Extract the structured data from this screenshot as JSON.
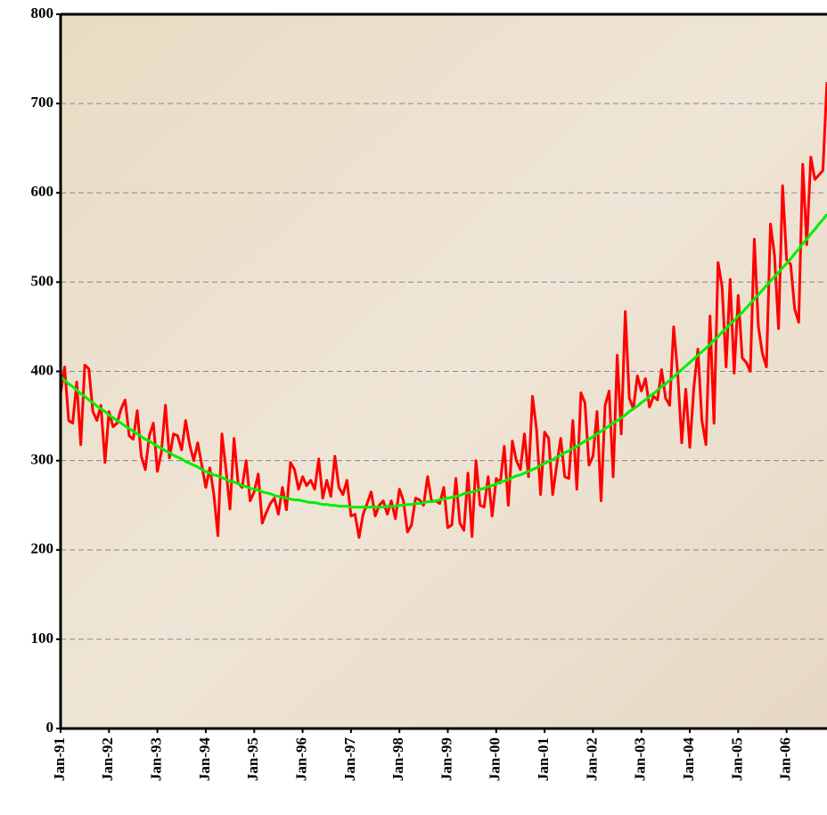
{
  "chart_data": {
    "type": "line",
    "x": [
      "Jan-91",
      null,
      null,
      null,
      null,
      null,
      null,
      null,
      null,
      null,
      null,
      null,
      "Jan-92",
      null,
      null,
      null,
      null,
      null,
      null,
      null,
      null,
      null,
      null,
      null,
      "Jan-93",
      null,
      null,
      null,
      null,
      null,
      null,
      null,
      null,
      null,
      null,
      null,
      "Jan-94",
      null,
      null,
      null,
      null,
      null,
      null,
      null,
      null,
      null,
      null,
      null,
      "Jan-95",
      null,
      null,
      null,
      null,
      null,
      null,
      null,
      null,
      null,
      null,
      null,
      "Jan-96",
      null,
      null,
      null,
      null,
      null,
      null,
      null,
      null,
      null,
      null,
      null,
      "Jan-97",
      null,
      null,
      null,
      null,
      null,
      null,
      null,
      null,
      null,
      null,
      null,
      "Jan-98",
      null,
      null,
      null,
      null,
      null,
      null,
      null,
      null,
      null,
      null,
      null,
      "Jan-99",
      null,
      null,
      null,
      null,
      null,
      null,
      null,
      null,
      null,
      null,
      null,
      "Jan-00",
      null,
      null,
      null,
      null,
      null,
      null,
      null,
      null,
      null,
      null,
      null,
      "Jan-01",
      null,
      null,
      null,
      null,
      null,
      null,
      null,
      null,
      null,
      null,
      null,
      "Jan-02",
      null,
      null,
      null,
      null,
      null,
      null,
      null,
      null,
      null,
      null,
      null,
      "Jan-03",
      null,
      null,
      null,
      null,
      null,
      null,
      null,
      null,
      null,
      null,
      null,
      "Jan-04",
      null,
      null,
      null,
      null,
      null,
      null,
      null,
      null,
      null,
      null,
      null,
      "Jan-05",
      null,
      null,
      null,
      null,
      null,
      null,
      null,
      null,
      null,
      null,
      null,
      "Jan-06",
      null,
      null,
      null,
      null,
      null,
      null,
      null,
      null,
      null,
      null
    ],
    "series": [
      {
        "color": "#ff0000",
        "values": [
          375,
          405,
          345,
          342,
          388,
          318,
          407,
          403,
          355,
          345,
          362,
          298,
          355,
          338,
          342,
          358,
          368,
          328,
          324,
          356,
          305,
          290,
          328,
          342,
          288,
          310,
          362,
          303,
          330,
          328,
          312,
          345,
          318,
          300,
          320,
          295,
          270,
          292,
          262,
          216,
          330,
          290,
          246,
          325,
          275,
          270,
          300,
          255,
          265,
          285,
          230,
          242,
          252,
          258,
          240,
          270,
          245,
          298,
          290,
          268,
          282,
          272,
          278,
          268,
          302,
          258,
          278,
          260,
          305,
          270,
          262,
          278,
          238,
          240,
          214,
          240,
          252,
          265,
          238,
          250,
          255,
          240,
          255,
          235,
          268,
          255,
          220,
          228,
          258,
          256,
          250,
          282,
          254,
          255,
          252,
          270,
          225,
          228,
          280,
          230,
          222,
          286,
          215,
          300,
          250,
          248,
          282,
          238,
          280,
          275,
          316,
          250,
          322,
          300,
          290,
          330,
          282,
          372,
          335,
          262,
          332,
          325,
          262,
          295,
          325,
          282,
          280,
          345,
          268,
          376,
          365,
          295,
          305,
          355,
          255,
          362,
          378,
          282,
          418,
          330,
          467,
          370,
          358,
          395,
          378,
          392,
          360,
          372,
          368,
          402,
          370,
          362,
          450,
          398,
          320,
          380,
          315,
          382,
          425,
          345,
          318,
          462,
          342,
          522,
          495,
          405,
          503,
          398,
          485,
          415,
          410,
          400,
          548,
          450,
          420,
          405,
          565,
          530,
          448,
          608,
          525,
          520,
          470,
          455,
          632,
          542,
          640,
          615,
          620,
          625,
          724
        ]
      },
      {
        "color": "#00ee00",
        "values": [
          394,
          390,
          386,
          383,
          379,
          375,
          372,
          368,
          365,
          361,
          358,
          355,
          351,
          348,
          345,
          342,
          339,
          336,
          333,
          330,
          327,
          324,
          322,
          319,
          316,
          314,
          311,
          309,
          306,
          304,
          302,
          299,
          297,
          295,
          293,
          290,
          288,
          286,
          284,
          283,
          281,
          279,
          277,
          276,
          274,
          272,
          271,
          269,
          268,
          267,
          265,
          264,
          263,
          261,
          260,
          259,
          258,
          257,
          256,
          256,
          255,
          254,
          253,
          253,
          252,
          251,
          251,
          250,
          250,
          249,
          249,
          249,
          248,
          248,
          248,
          248,
          248,
          248,
          248,
          248,
          248,
          249,
          249,
          249,
          250,
          250,
          251,
          251,
          252,
          252,
          253,
          254,
          254,
          255,
          256,
          257,
          258,
          259,
          260,
          261,
          263,
          264,
          265,
          266,
          268,
          269,
          271,
          272,
          274,
          276,
          277,
          279,
          281,
          283,
          284,
          286,
          288,
          290,
          292,
          295,
          297,
          299,
          301,
          304,
          306,
          309,
          311,
          314,
          316,
          319,
          322,
          324,
          327,
          330,
          333,
          336,
          339,
          342,
          345,
          348,
          351,
          355,
          358,
          361,
          365,
          368,
          372,
          375,
          379,
          383,
          386,
          390,
          394,
          398,
          402,
          406,
          410,
          414,
          418,
          422,
          426,
          430,
          435,
          439,
          444,
          448,
          453,
          457,
          462,
          466,
          471,
          476,
          481,
          486,
          491,
          496,
          501,
          506,
          511,
          516,
          521,
          526,
          532,
          537,
          543,
          548,
          554,
          559,
          565,
          570,
          576
        ]
      }
    ],
    "ylim": [
      0,
      800
    ],
    "yticks": [
      0,
      100,
      200,
      300,
      400,
      500,
      600,
      700,
      800
    ],
    "grid": true
  }
}
